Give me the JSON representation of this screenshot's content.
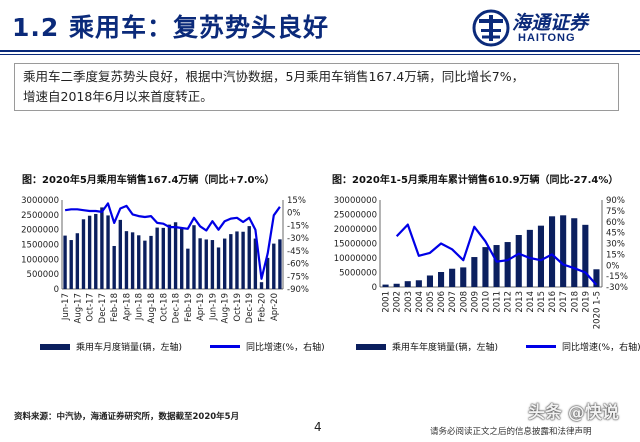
{
  "header": {
    "title": "1.2 乘用车：复苏势头良好",
    "logo_cn": "海通证券",
    "logo_en": "HAITONG"
  },
  "summary": "乘用车二季度复苏势头良好，根据中汽协数据，5月乘用车销售167.4万辆，同比增长7%，\n增速自2018年6月以来首度转正。",
  "colors": {
    "brand": "#0b2a7a",
    "bar": "#0b1f5e",
    "line": "#0000e6"
  },
  "chart_data": [
    {
      "type": "bar",
      "title": "图：2020年5月乘用车销售167.4万辆（同比+7.0%）",
      "x_tick_labels": [
        "Jun-17",
        "Aug-17",
        "Oct-17",
        "Dec-17",
        "Feb-18",
        "Apr-18",
        "Jun-18",
        "Aug-18",
        "Oct-18",
        "Dec-18",
        "Feb-19",
        "Apr-19",
        "Jun-19",
        "Aug-19",
        "Oct-19",
        "Dec-19",
        "Feb-20",
        "Apr-20"
      ],
      "categories": [
        "Jun-17",
        "Jul-17",
        "Aug-17",
        "Sep-17",
        "Oct-17",
        "Nov-17",
        "Dec-17",
        "Jan-18",
        "Feb-18",
        "Mar-18",
        "Apr-18",
        "May-18",
        "Jun-18",
        "Jul-18",
        "Aug-18",
        "Sep-18",
        "Oct-18",
        "Nov-18",
        "Dec-18",
        "Jan-19",
        "Feb-19",
        "Mar-19",
        "Apr-19",
        "May-19",
        "Jun-19",
        "Jul-19",
        "Aug-19",
        "Sep-19",
        "Oct-19",
        "Nov-19",
        "Dec-19",
        "Jan-20",
        "Feb-20",
        "Mar-20",
        "Apr-20",
        "May-20"
      ],
      "series": [
        {
          "name": "乘用车月度销量(辆，左轴)",
          "axis": "left",
          "kind": "bar",
          "values": [
            1800000,
            1650000,
            1880000,
            2350000,
            2470000,
            2530000,
            2750000,
            2480000,
            1450000,
            2330000,
            1950000,
            1910000,
            1810000,
            1630000,
            1790000,
            2070000,
            2060000,
            2170000,
            2250000,
            2040000,
            1360000,
            2150000,
            1710000,
            1670000,
            1650000,
            1400000,
            1700000,
            1850000,
            1940000,
            1930000,
            2120000,
            1700000,
            230000,
            1050000,
            1530000,
            1674000
          ]
        },
        {
          "name": "同比增速(%，右轴)",
          "axis": "right",
          "kind": "line",
          "values": [
            3,
            4,
            4,
            3,
            2,
            2,
            1,
            11,
            -12,
            5,
            8,
            -2,
            -4,
            -5,
            -4,
            -12,
            -13,
            -17,
            -17,
            -18,
            -19,
            -6,
            -16,
            -21,
            -10,
            -20,
            -10,
            -7,
            -6,
            -11,
            -6,
            -20,
            -78,
            -48,
            -3,
            7
          ]
        }
      ],
      "ylim_left": [
        0,
        3000000
      ],
      "yticks_left": [
        "0",
        "500000",
        "1000000",
        "1500000",
        "2000000",
        "2500000",
        "3000000"
      ],
      "ylim_right": [
        -90,
        15
      ],
      "yticks_right": [
        "-90%",
        "-75%",
        "-60%",
        "-45%",
        "-30%",
        "-15%",
        "0%",
        "15%"
      ],
      "legend": [
        "乘用车月度销量(辆，左轴)",
        "同比增速(%，右轴)"
      ],
      "grid": false
    },
    {
      "type": "bar",
      "title": "图：2020年1-5月乘用车累计销售610.9万辆（同比-27.4%）",
      "categories": [
        "2001",
        "2002",
        "2003",
        "2004",
        "2005",
        "2006",
        "2007",
        "2008",
        "2009",
        "2010",
        "2011",
        "2012",
        "2013",
        "2014",
        "2015",
        "2016",
        "2017",
        "2018",
        "2019",
        "2020 1-5"
      ],
      "series": [
        {
          "name": "乘用车年度销量(辆，左轴)",
          "axis": "left",
          "kind": "bar",
          "values": [
            830000,
            1120000,
            2010000,
            2320000,
            3970000,
            5170000,
            6300000,
            6760000,
            10330000,
            13760000,
            14470000,
            15500000,
            17930000,
            19700000,
            21150000,
            24380000,
            24720000,
            23710000,
            21440000,
            6109000
          ]
        },
        {
          "name": "同比增速(%，右轴)",
          "axis": "right",
          "kind": "line",
          "values": [
            null,
            40,
            56,
            13,
            17,
            30,
            22,
            7,
            53,
            33,
            5,
            7,
            16,
            10,
            7,
            15,
            1,
            -4,
            -10,
            -27
          ]
        }
      ],
      "ylim_left": [
        0,
        30000000
      ],
      "yticks_left": [
        "0",
        "5000000",
        "10000000",
        "15000000",
        "20000000",
        "25000000",
        "30000000"
      ],
      "ylim_right": [
        -30,
        90
      ],
      "yticks_right": [
        "-30%",
        "-15%",
        "0%",
        "15%",
        "30%",
        "45%",
        "60%",
        "75%",
        "90%"
      ],
      "legend": [
        "乘用车年度销量(辆，左轴)",
        "同比增速(%，右轴)"
      ],
      "grid": false
    }
  ],
  "footer": {
    "source": "资料来源：中汽协，海通证券研究所，数据截至2020年5月",
    "page_number": "4",
    "note": "请务必阅读正文之后的信息披露和法律声明",
    "watermark": "头条 @快说"
  }
}
